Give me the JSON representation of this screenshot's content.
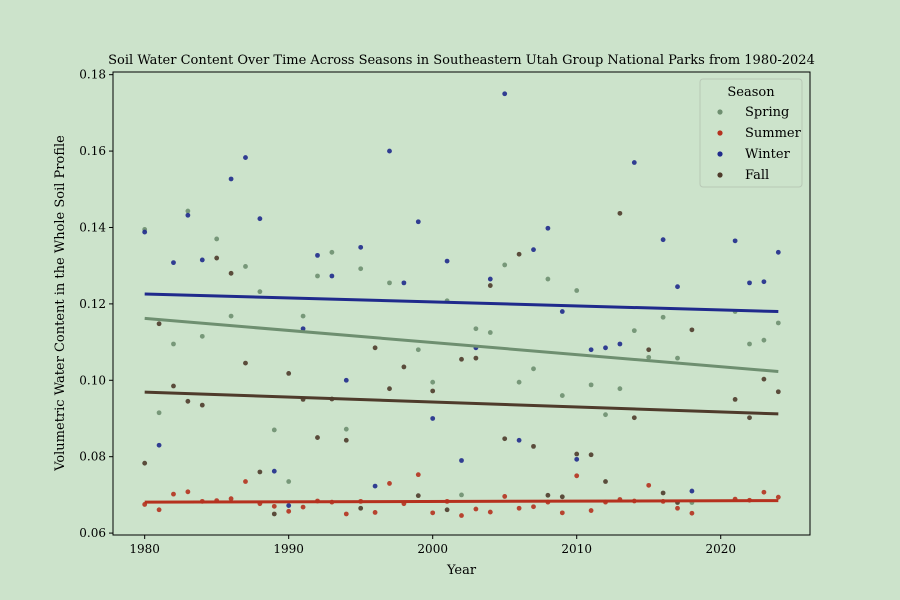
{
  "chart_data": {
    "type": "scatter",
    "title": "Soil Water Content Over Time Across Seasons in Southeastern Utah Group National Parks from 1980-2024",
    "xlabel": "Year",
    "ylabel": "Volumetric Water Content in the Whole Soil Profile",
    "xlim": [
      1977.8,
      2026.2
    ],
    "ylim": [
      0.0595,
      0.1807
    ],
    "xticks": [
      1980,
      1990,
      2000,
      2010,
      2020
    ],
    "yticks": [
      0.06,
      0.08,
      0.1,
      0.12,
      0.14,
      0.16,
      0.18
    ],
    "xtick_labels": [
      "1980",
      "1990",
      "2000",
      "2010",
      "2020"
    ],
    "ytick_labels": [
      "0.06",
      "0.08",
      "0.10",
      "0.12",
      "0.14",
      "0.16",
      "0.18"
    ],
    "grid": false,
    "legend": {
      "title": "Season",
      "placement": "top-right"
    },
    "series": [
      {
        "name": "Spring",
        "color": "#6e8f70",
        "points": [
          [
            1980,
            0.1395
          ],
          [
            1981,
            0.0915
          ],
          [
            1982,
            0.1095
          ],
          [
            1983,
            0.1443
          ],
          [
            1984,
            0.1115
          ],
          [
            1985,
            0.137
          ],
          [
            1986,
            0.1168
          ],
          [
            1987,
            0.1298
          ],
          [
            1988,
            0.1232
          ],
          [
            1989,
            0.087
          ],
          [
            1990,
            0.0735
          ],
          [
            1991,
            0.1168
          ],
          [
            1992,
            0.1273
          ],
          [
            1993,
            0.1335
          ],
          [
            1994,
            0.0872
          ],
          [
            1995,
            0.1292
          ],
          [
            1997,
            0.1255
          ],
          [
            1999,
            0.108
          ],
          [
            2000,
            0.0995
          ],
          [
            2001,
            0.1208
          ],
          [
            2002,
            0.07
          ],
          [
            2003,
            0.1135
          ],
          [
            2004,
            0.1125
          ],
          [
            2005,
            0.1302
          ],
          [
            2006,
            0.0995
          ],
          [
            2007,
            0.103
          ],
          [
            2008,
            0.1265
          ],
          [
            2009,
            0.096
          ],
          [
            2010,
            0.1235
          ],
          [
            2011,
            0.0988
          ],
          [
            2012,
            0.091
          ],
          [
            2013,
            0.0978
          ],
          [
            2014,
            0.113
          ],
          [
            2015,
            0.106
          ],
          [
            2016,
            0.1165
          ],
          [
            2017,
            0.1058
          ],
          [
            2018,
            0.068
          ],
          [
            2021,
            0.118
          ],
          [
            2022,
            0.1095
          ],
          [
            2023,
            0.1105
          ],
          [
            2024,
            0.115
          ]
        ],
        "trend": [
          [
            1980,
            0.1162
          ],
          [
            2024,
            0.1023
          ]
        ]
      },
      {
        "name": "Summer",
        "color": "#b5311e",
        "points": [
          [
            1980,
            0.0675
          ],
          [
            1981,
            0.0661
          ],
          [
            1982,
            0.0702
          ],
          [
            1983,
            0.0708
          ],
          [
            1984,
            0.0683
          ],
          [
            1985,
            0.0685
          ],
          [
            1986,
            0.069
          ],
          [
            1987,
            0.0735
          ],
          [
            1988,
            0.0677
          ],
          [
            1989,
            0.067
          ],
          [
            1990,
            0.0657
          ],
          [
            1991,
            0.0668
          ],
          [
            1992,
            0.0684
          ],
          [
            1993,
            0.0681
          ],
          [
            1994,
            0.065
          ],
          [
            1995,
            0.0683
          ],
          [
            1996,
            0.0654
          ],
          [
            1997,
            0.073
          ],
          [
            1998,
            0.0677
          ],
          [
            1999,
            0.0753
          ],
          [
            2000,
            0.0653
          ],
          [
            2001,
            0.0683
          ],
          [
            2002,
            0.0646
          ],
          [
            2003,
            0.0663
          ],
          [
            2004,
            0.0655
          ],
          [
            2005,
            0.0696
          ],
          [
            2006,
            0.0665
          ],
          [
            2007,
            0.0669
          ],
          [
            2008,
            0.0681
          ],
          [
            2009,
            0.0653
          ],
          [
            2010,
            0.075
          ],
          [
            2011,
            0.0659
          ],
          [
            2012,
            0.0681
          ],
          [
            2013,
            0.0688
          ],
          [
            2014,
            0.0684
          ],
          [
            2015,
            0.0725
          ],
          [
            2016,
            0.0683
          ],
          [
            2017,
            0.0665
          ],
          [
            2018,
            0.0652
          ],
          [
            2021,
            0.0689
          ],
          [
            2022,
            0.0686
          ],
          [
            2023,
            0.0707
          ],
          [
            2024,
            0.0694
          ]
        ],
        "trend": [
          [
            1980,
            0.0681
          ],
          [
            2024,
            0.0685
          ]
        ]
      },
      {
        "name": "Winter",
        "color": "#1f2a8c",
        "points": [
          [
            1980,
            0.1388
          ],
          [
            1981,
            0.083
          ],
          [
            1982,
            0.1308
          ],
          [
            1983,
            0.1432
          ],
          [
            1984,
            0.1315
          ],
          [
            1986,
            0.1527
          ],
          [
            1987,
            0.1583
          ],
          [
            1988,
            0.1423
          ],
          [
            1989,
            0.0762
          ],
          [
            1990,
            0.0672
          ],
          [
            1991,
            0.1135
          ],
          [
            1992,
            0.1327
          ],
          [
            1993,
            0.1273
          ],
          [
            1994,
            0.1
          ],
          [
            1995,
            0.1348
          ],
          [
            1996,
            0.0723
          ],
          [
            1997,
            0.16
          ],
          [
            1998,
            0.1255
          ],
          [
            1999,
            0.1415
          ],
          [
            2000,
            0.09
          ],
          [
            2001,
            0.1312
          ],
          [
            2002,
            0.079
          ],
          [
            2003,
            0.1085
          ],
          [
            2004,
            0.1265
          ],
          [
            2005,
            0.175
          ],
          [
            2006,
            0.0843
          ],
          [
            2007,
            0.1342
          ],
          [
            2008,
            0.1398
          ],
          [
            2009,
            0.118
          ],
          [
            2010,
            0.0793
          ],
          [
            2011,
            0.108
          ],
          [
            2012,
            0.1085
          ],
          [
            2013,
            0.1095
          ],
          [
            2014,
            0.157
          ],
          [
            2016,
            0.1368
          ],
          [
            2017,
            0.1245
          ],
          [
            2018,
            0.071
          ],
          [
            2021,
            0.1365
          ],
          [
            2022,
            0.1255
          ],
          [
            2023,
            0.1258
          ],
          [
            2024,
            0.1335
          ]
        ],
        "trend": [
          [
            1980,
            0.1226
          ],
          [
            2024,
            0.118
          ]
        ]
      },
      {
        "name": "Fall",
        "color": "#4e3b2b",
        "points": [
          [
            1980,
            0.0783
          ],
          [
            1981,
            0.1148
          ],
          [
            1982,
            0.0985
          ],
          [
            1983,
            0.0945
          ],
          [
            1984,
            0.0935
          ],
          [
            1985,
            0.132
          ],
          [
            1986,
            0.128
          ],
          [
            1987,
            0.1045
          ],
          [
            1988,
            0.076
          ],
          [
            1989,
            0.065
          ],
          [
            1990,
            0.1018
          ],
          [
            1991,
            0.095
          ],
          [
            1992,
            0.085
          ],
          [
            1993,
            0.0951
          ],
          [
            1994,
            0.0843
          ],
          [
            1995,
            0.0665
          ],
          [
            1996,
            0.1085
          ],
          [
            1997,
            0.0978
          ],
          [
            1998,
            0.1035
          ],
          [
            1999,
            0.0698
          ],
          [
            2000,
            0.0972
          ],
          [
            2001,
            0.0661
          ],
          [
            2002,
            0.1055
          ],
          [
            2003,
            0.1058
          ],
          [
            2004,
            0.1248
          ],
          [
            2005,
            0.0847
          ],
          [
            2006,
            0.133
          ],
          [
            2007,
            0.0827
          ],
          [
            2008,
            0.0699
          ],
          [
            2009,
            0.0695
          ],
          [
            2010,
            0.0807
          ],
          [
            2011,
            0.0805
          ],
          [
            2012,
            0.0735
          ],
          [
            2013,
            0.1437
          ],
          [
            2014,
            0.0902
          ],
          [
            2015,
            0.108
          ],
          [
            2016,
            0.0705
          ],
          [
            2017,
            0.068
          ],
          [
            2018,
            0.1132
          ],
          [
            2021,
            0.095
          ],
          [
            2022,
            0.0902
          ],
          [
            2023,
            0.1003
          ],
          [
            2024,
            0.097
          ]
        ],
        "trend": [
          [
            1980,
            0.0969
          ],
          [
            2024,
            0.0912
          ]
        ]
      }
    ]
  }
}
